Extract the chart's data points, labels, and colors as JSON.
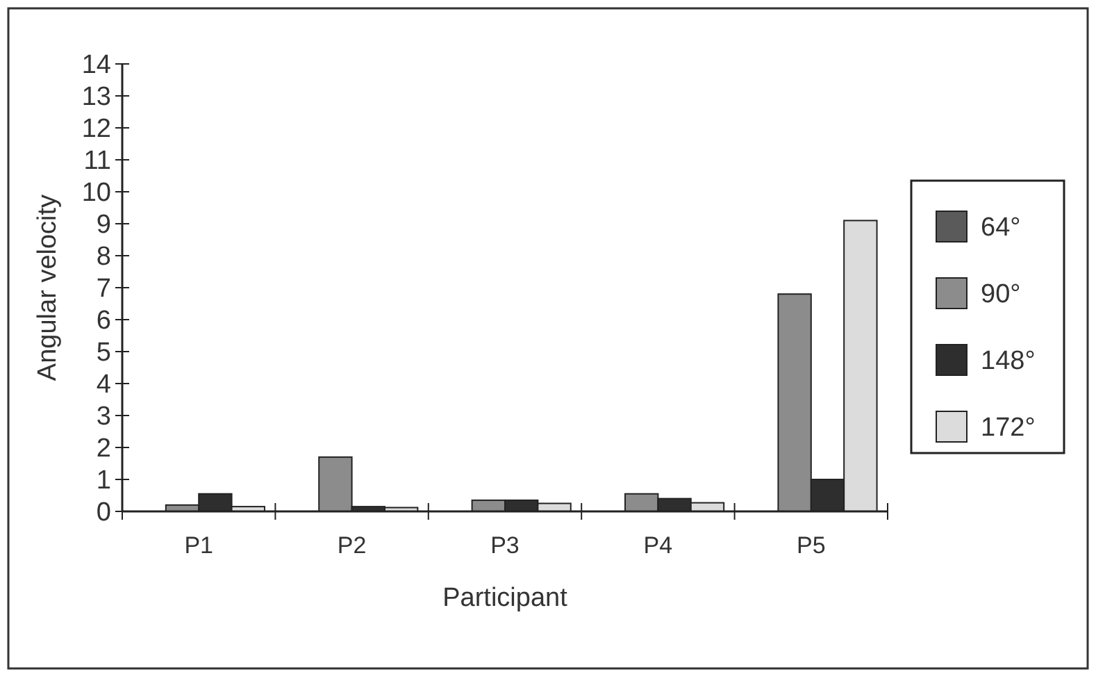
{
  "chart_data": {
    "type": "bar",
    "xlabel": "Participant",
    "ylabel": "Angular velocity",
    "categories": [
      "P1",
      "P2",
      "P3",
      "P4",
      "P5"
    ],
    "series": [
      {
        "name": "64°",
        "color": "#5a5a5a",
        "values": [
          null,
          null,
          null,
          null,
          null
        ]
      },
      {
        "name": "90°",
        "color": "#8c8c8c",
        "values": [
          0.2,
          1.7,
          0.35,
          0.55,
          6.8
        ]
      },
      {
        "name": "148°",
        "color": "#2e2e2e",
        "values": [
          0.55,
          0.15,
          0.35,
          0.4,
          1.0
        ]
      },
      {
        "name": "172°",
        "color": "#dcdcdc",
        "values": [
          0.15,
          0.12,
          0.25,
          0.27,
          9.1
        ]
      }
    ],
    "ylim": [
      0,
      14
    ],
    "yticks": [
      0,
      1,
      2,
      3,
      4,
      5,
      6,
      7,
      8,
      9,
      10,
      11,
      12,
      13,
      14
    ],
    "grid": false,
    "legend": "right"
  }
}
